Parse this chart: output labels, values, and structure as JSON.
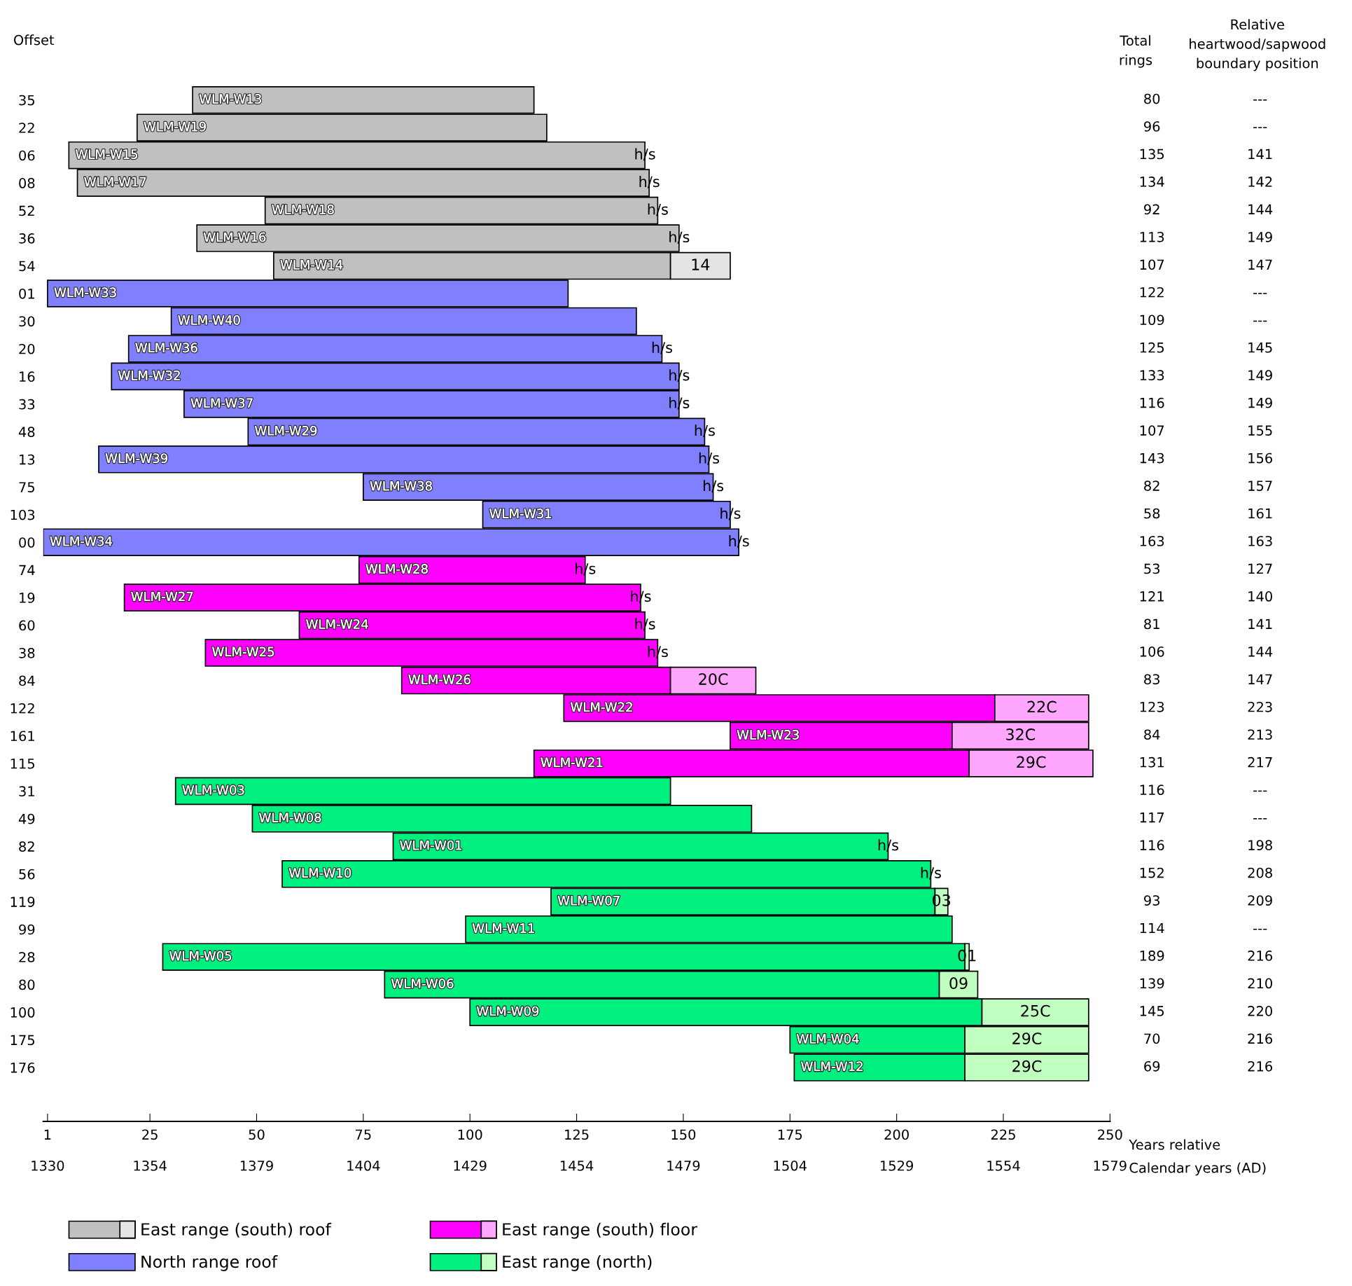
{
  "chart_data": {
    "type": "bar",
    "orientation": "horizontal",
    "ylabel": "Offset",
    "xlabel": "Years relative",
    "x2label": "Calendar years (AD)",
    "categories": [
      "35",
      "22",
      "06",
      "08",
      "52",
      "36",
      "54",
      "01",
      "30",
      "20",
      "16",
      "33",
      "48",
      "13",
      "75",
      "103",
      "00",
      "74",
      "19",
      "60",
      "38",
      "84",
      "122",
      "161",
      "115",
      "31",
      "49",
      "82",
      "56",
      "119",
      "99",
      "28",
      "80",
      "100",
      "175",
      "176"
    ],
    "series": [
      {
        "name": "East range (south) roof",
        "color": "#c0c0c0",
        "base": [
          35,
          22,
          6,
          8,
          52,
          36,
          54,
          null,
          null,
          null,
          null,
          null,
          null,
          null,
          null,
          null,
          null,
          null,
          null,
          null,
          null,
          null,
          null,
          null,
          null,
          null,
          null,
          null,
          null,
          null,
          null,
          null,
          null,
          null,
          null,
          null
        ],
        "values": [
          80,
          96,
          135,
          134,
          92,
          113,
          93,
          null,
          null,
          null,
          null,
          null,
          null,
          null,
          null,
          null,
          null,
          null,
          null,
          null,
          null,
          null,
          null,
          null,
          null,
          null,
          null,
          null,
          null,
          null,
          null,
          null,
          null,
          null,
          null,
          null
        ],
        "value_labels": [
          "WLM-W13",
          "WLM-W19",
          "WLM-W15",
          "WLM-W17",
          "WLM-W18",
          "WLM-W16",
          "WLM-W14",
          null,
          null,
          null,
          null,
          null,
          null,
          null,
          null,
          null,
          null,
          null,
          null,
          null,
          null,
          null,
          null,
          null,
          null,
          null,
          null,
          null,
          null,
          null,
          null,
          null,
          null,
          null,
          null,
          null
        ]
      },
      {
        "color": "#e4e4e4",
        "base": [
          null,
          null,
          null,
          null,
          null,
          null,
          147,
          null,
          null,
          null,
          null,
          null,
          null,
          null,
          null,
          null,
          null,
          null,
          null,
          null,
          null,
          null,
          null,
          null,
          null,
          null,
          null,
          null,
          null,
          null,
          null,
          null,
          null,
          null,
          null,
          null
        ],
        "values": [
          null,
          null,
          null,
          null,
          null,
          null,
          14,
          null,
          null,
          null,
          null,
          null,
          null,
          null,
          null,
          null,
          null,
          null,
          null,
          null,
          null,
          null,
          null,
          null,
          null,
          null,
          null,
          null,
          null,
          null,
          null,
          null,
          null,
          null,
          null,
          null
        ],
        "value_labels": [
          null,
          null,
          null,
          null,
          null,
          null,
          "14",
          null,
          null,
          null,
          null,
          null,
          null,
          null,
          null,
          null,
          null,
          null,
          null,
          null,
          null,
          null,
          null,
          null,
          null,
          null,
          null,
          null,
          null,
          null,
          null,
          null,
          null,
          null,
          null,
          null
        ]
      },
      {
        "name": "North range roof",
        "color": "#8080ff",
        "base": [
          null,
          null,
          null,
          null,
          null,
          null,
          null,
          1,
          30,
          20,
          16,
          33,
          48,
          13,
          75,
          103,
          0,
          null,
          null,
          null,
          null,
          null,
          null,
          null,
          null,
          null,
          null,
          null,
          null,
          null,
          null,
          null,
          null,
          null,
          null,
          null
        ],
        "values": [
          null,
          null,
          null,
          null,
          null,
          null,
          null,
          122,
          109,
          125,
          133,
          116,
          107,
          143,
          82,
          58,
          163,
          null,
          null,
          null,
          null,
          null,
          null,
          null,
          null,
          null,
          null,
          null,
          null,
          null,
          null,
          null,
          null,
          null,
          null,
          null
        ],
        "value_labels": [
          null,
          null,
          null,
          null,
          null,
          null,
          null,
          "WLM-W33",
          "WLM-W40",
          "WLM-W36",
          "WLM-W32",
          "WLM-W37",
          "WLM-W29",
          "WLM-W39",
          "WLM-W38",
          "WLM-W31",
          "WLM-W34",
          null,
          null,
          null,
          null,
          null,
          null,
          null,
          null,
          null,
          null,
          null,
          null,
          null,
          null,
          null,
          null,
          null,
          null,
          null
        ]
      },
      {
        "name": "East range (south) floor",
        "color": "#ff00ff",
        "base": [
          null,
          null,
          null,
          null,
          null,
          null,
          null,
          null,
          null,
          null,
          null,
          null,
          null,
          null,
          null,
          null,
          null,
          74,
          19,
          60,
          38,
          84,
          122,
          161,
          115,
          null,
          null,
          null,
          null,
          null,
          null,
          null,
          null,
          null,
          null,
          null
        ],
        "values": [
          null,
          null,
          null,
          null,
          null,
          null,
          null,
          null,
          null,
          null,
          null,
          null,
          null,
          null,
          null,
          null,
          null,
          53,
          121,
          81,
          106,
          63,
          101,
          52,
          102,
          null,
          null,
          null,
          null,
          null,
          null,
          null,
          null,
          null,
          null,
          null
        ],
        "value_labels": [
          null,
          null,
          null,
          null,
          null,
          null,
          null,
          null,
          null,
          null,
          null,
          null,
          null,
          null,
          null,
          null,
          null,
          "WLM-W28",
          "WLM-W27",
          "WLM-W24",
          "WLM-W25",
          "WLM-W26",
          "WLM-W22",
          "WLM-W23",
          "WLM-W21",
          null,
          null,
          null,
          null,
          null,
          null,
          null,
          null,
          null,
          null,
          null
        ]
      },
      {
        "color": "#ffa6ff",
        "base": [
          null,
          null,
          null,
          null,
          null,
          null,
          null,
          null,
          null,
          null,
          null,
          null,
          null,
          null,
          null,
          null,
          null,
          null,
          null,
          null,
          null,
          147,
          223,
          213,
          217,
          null,
          null,
          null,
          null,
          null,
          null,
          null,
          null,
          null,
          null,
          null
        ],
        "values": [
          null,
          null,
          null,
          null,
          null,
          null,
          null,
          null,
          null,
          null,
          null,
          null,
          null,
          null,
          null,
          null,
          null,
          null,
          null,
          null,
          null,
          20,
          22,
          32,
          29,
          null,
          null,
          null,
          null,
          null,
          null,
          null,
          null,
          null,
          null,
          null
        ],
        "value_labels": [
          null,
          null,
          null,
          null,
          null,
          null,
          null,
          null,
          null,
          null,
          null,
          null,
          null,
          null,
          null,
          null,
          null,
          null,
          null,
          null,
          null,
          "20C",
          "22C",
          "32C",
          "29C",
          null,
          null,
          null,
          null,
          null,
          null,
          null,
          null,
          null,
          null,
          null
        ]
      },
      {
        "name": "East range (north)",
        "color": "#00f080",
        "base": [
          null,
          null,
          null,
          null,
          null,
          null,
          null,
          null,
          null,
          null,
          null,
          null,
          null,
          null,
          null,
          null,
          null,
          null,
          null,
          null,
          null,
          null,
          null,
          null,
          null,
          31,
          49,
          82,
          56,
          119,
          99,
          28,
          80,
          100,
          175,
          176
        ],
        "values": [
          null,
          null,
          null,
          null,
          null,
          null,
          null,
          null,
          null,
          null,
          null,
          null,
          null,
          null,
          null,
          null,
          null,
          null,
          null,
          null,
          null,
          null,
          null,
          null,
          null,
          116,
          117,
          116,
          152,
          90,
          114,
          188,
          130,
          120,
          41,
          40
        ],
        "value_labels": [
          null,
          null,
          null,
          null,
          null,
          null,
          null,
          null,
          null,
          null,
          null,
          null,
          null,
          null,
          null,
          null,
          null,
          null,
          null,
          null,
          null,
          null,
          null,
          null,
          null,
          "WLM-W03",
          "WLM-W08",
          "WLM-W01",
          "WLM-W10",
          "WLM-W07",
          "WLM-W11",
          "WLM-W05",
          "WLM-W06",
          "WLM-W09",
          "WLM-W04",
          "WLM-W12"
        ]
      },
      {
        "color": "#c0ffc0",
        "base": [
          null,
          null,
          null,
          null,
          null,
          null,
          null,
          null,
          null,
          null,
          null,
          null,
          null,
          null,
          null,
          null,
          null,
          null,
          null,
          null,
          null,
          null,
          null,
          null,
          null,
          null,
          null,
          null,
          null,
          209,
          null,
          216,
          210,
          220,
          216,
          216
        ],
        "values": [
          null,
          null,
          null,
          null,
          null,
          null,
          null,
          null,
          null,
          null,
          null,
          null,
          null,
          null,
          null,
          null,
          null,
          null,
          null,
          null,
          null,
          null,
          null,
          null,
          null,
          null,
          null,
          null,
          null,
          3,
          null,
          1,
          9,
          25,
          29,
          29
        ],
        "value_labels": [
          null,
          null,
          null,
          null,
          null,
          null,
          null,
          null,
          null,
          null,
          null,
          null,
          null,
          null,
          null,
          null,
          null,
          null,
          null,
          null,
          null,
          null,
          null,
          null,
          null,
          null,
          null,
          null,
          null,
          "03",
          null,
          "01",
          "09",
          "25C",
          "29C",
          "29C"
        ]
      }
    ],
    "annotations": [
      "Total\nrings",
      "Relative\nheartwood/sapwood\nboundary position",
      "80",
      "96",
      "135",
      "134",
      "92",
      "113",
      "107",
      "122",
      "109",
      "125",
      "133",
      "116",
      "107",
      "143",
      "82",
      "58",
      "163",
      "53",
      "121",
      "81",
      "106",
      "83",
      "123",
      "84",
      "131",
      "116",
      "117",
      "116",
      "152",
      "93",
      "114",
      "189",
      "139",
      "145",
      "70",
      "69",
      "---",
      "---",
      "141",
      "142",
      "144",
      "149",
      "147",
      "---",
      "---",
      "145",
      "149",
      "149",
      "155",
      "156",
      "157",
      "161",
      "163",
      "127",
      "140",
      "141",
      "144",
      "147",
      "223",
      "213",
      "217",
      "---",
      "---",
      "198",
      "208",
      "209",
      "---",
      "216",
      "210",
      "220",
      "216",
      "216",
      {
        "text": "h/s",
        "x": 141,
        "y": "06"
      },
      {
        "text": "h/s",
        "x": 142,
        "y": "08"
      },
      {
        "text": "h/s",
        "x": 144,
        "y": "52"
      },
      {
        "text": "h/s",
        "x": 149,
        "y": "36"
      },
      {
        "text": "h/s",
        "x": 145,
        "y": "20"
      },
      {
        "text": "h/s",
        "x": 149,
        "y": "16"
      },
      {
        "text": "h/s",
        "x": 149,
        "y": "33"
      },
      {
        "text": "h/s",
        "x": 155,
        "y": "48"
      },
      {
        "text": "h/s",
        "x": 156,
        "y": "13"
      },
      {
        "text": "h/s",
        "x": 157,
        "y": "75"
      },
      {
        "text": "h/s",
        "x": 161,
        "y": "103"
      },
      {
        "text": "h/s",
        "x": 163,
        "y": "00"
      },
      {
        "text": "h/s",
        "x": 127,
        "y": "74"
      },
      {
        "text": "h/s",
        "x": 140,
        "y": "19"
      },
      {
        "text": "h/s",
        "x": 141,
        "y": "60"
      },
      {
        "text": "h/s",
        "x": 144,
        "y": "38"
      },
      {
        "text": "h/s",
        "x": 198,
        "y": "82"
      },
      {
        "text": "h/s",
        "x": 208,
        "y": "56"
      }
    ],
    "xlim": [
      0,
      250
    ],
    "xticks": [
      1,
      25,
      50,
      75,
      100,
      125,
      150,
      175,
      200,
      225,
      250
    ],
    "x2lim": [
      1329,
      1579
    ],
    "x2ticks": [
      1330,
      1354,
      1379,
      1404,
      1429,
      1454,
      1479,
      1504,
      1529,
      1554,
      1579
    ],
    "grid": false,
    "legend": "bottom"
  }
}
